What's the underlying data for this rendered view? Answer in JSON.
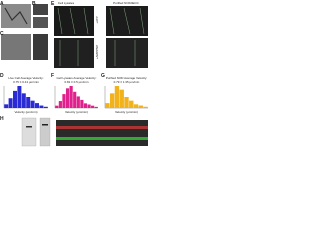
{
  "header": {
    "left": "Cell Lysates",
    "right": "Purified NOD4ECC"
  },
  "panel_labels": [
    "A",
    "B",
    "C",
    "D",
    "E",
    "F",
    "G",
    "H"
  ],
  "row_labels": [
    "+ATP",
    "+AMPPNP"
  ],
  "histograms": [
    {
      "title": "Live Cell Average Velocity:",
      "stat": "0.75 ± 0.41 µm/min",
      "x_label": "Velocity (µm/min)",
      "color": "#2b2bd6",
      "counts": [
        3,
        8,
        14,
        18,
        12,
        9,
        6,
        4,
        2,
        1
      ]
    },
    {
      "title": "Cell Lysates Average Velocity:",
      "stat": "0.81 ± 0.5 µm/min",
      "x_label": "Velocity (µm/min)",
      "color": "#e0208c",
      "counts": [
        2,
        6,
        12,
        17,
        19,
        14,
        10,
        7,
        4,
        3,
        2,
        1
      ]
    },
    {
      "title": "Purified NOD Average Velocity:",
      "stat": "0.79 ± 1.35 µm/min",
      "x_label": "Velocity (µm/min)",
      "color": "#f2b21c",
      "counts": [
        4,
        12,
        18,
        15,
        9,
        6,
        3,
        2,
        1
      ]
    }
  ]
}
